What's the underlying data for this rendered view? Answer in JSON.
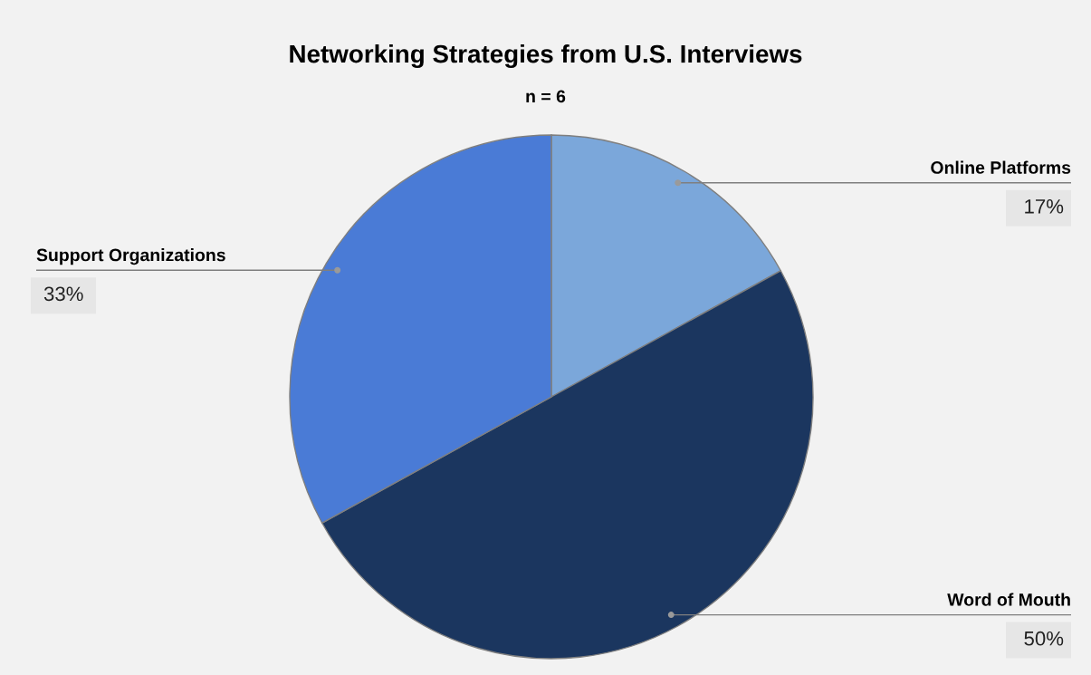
{
  "chart_data": {
    "type": "pie",
    "title": "Networking Strategies from U.S. Interviews",
    "subtitle": "n = 6",
    "categories": [
      "Online Platforms",
      "Word of Mouth",
      "Support Organizations"
    ],
    "values": [
      17,
      50,
      33
    ],
    "value_labels": [
      "17%",
      "50%",
      "33%"
    ],
    "colors": [
      "#7ba7da",
      "#1b365f",
      "#4a7bd6"
    ]
  }
}
